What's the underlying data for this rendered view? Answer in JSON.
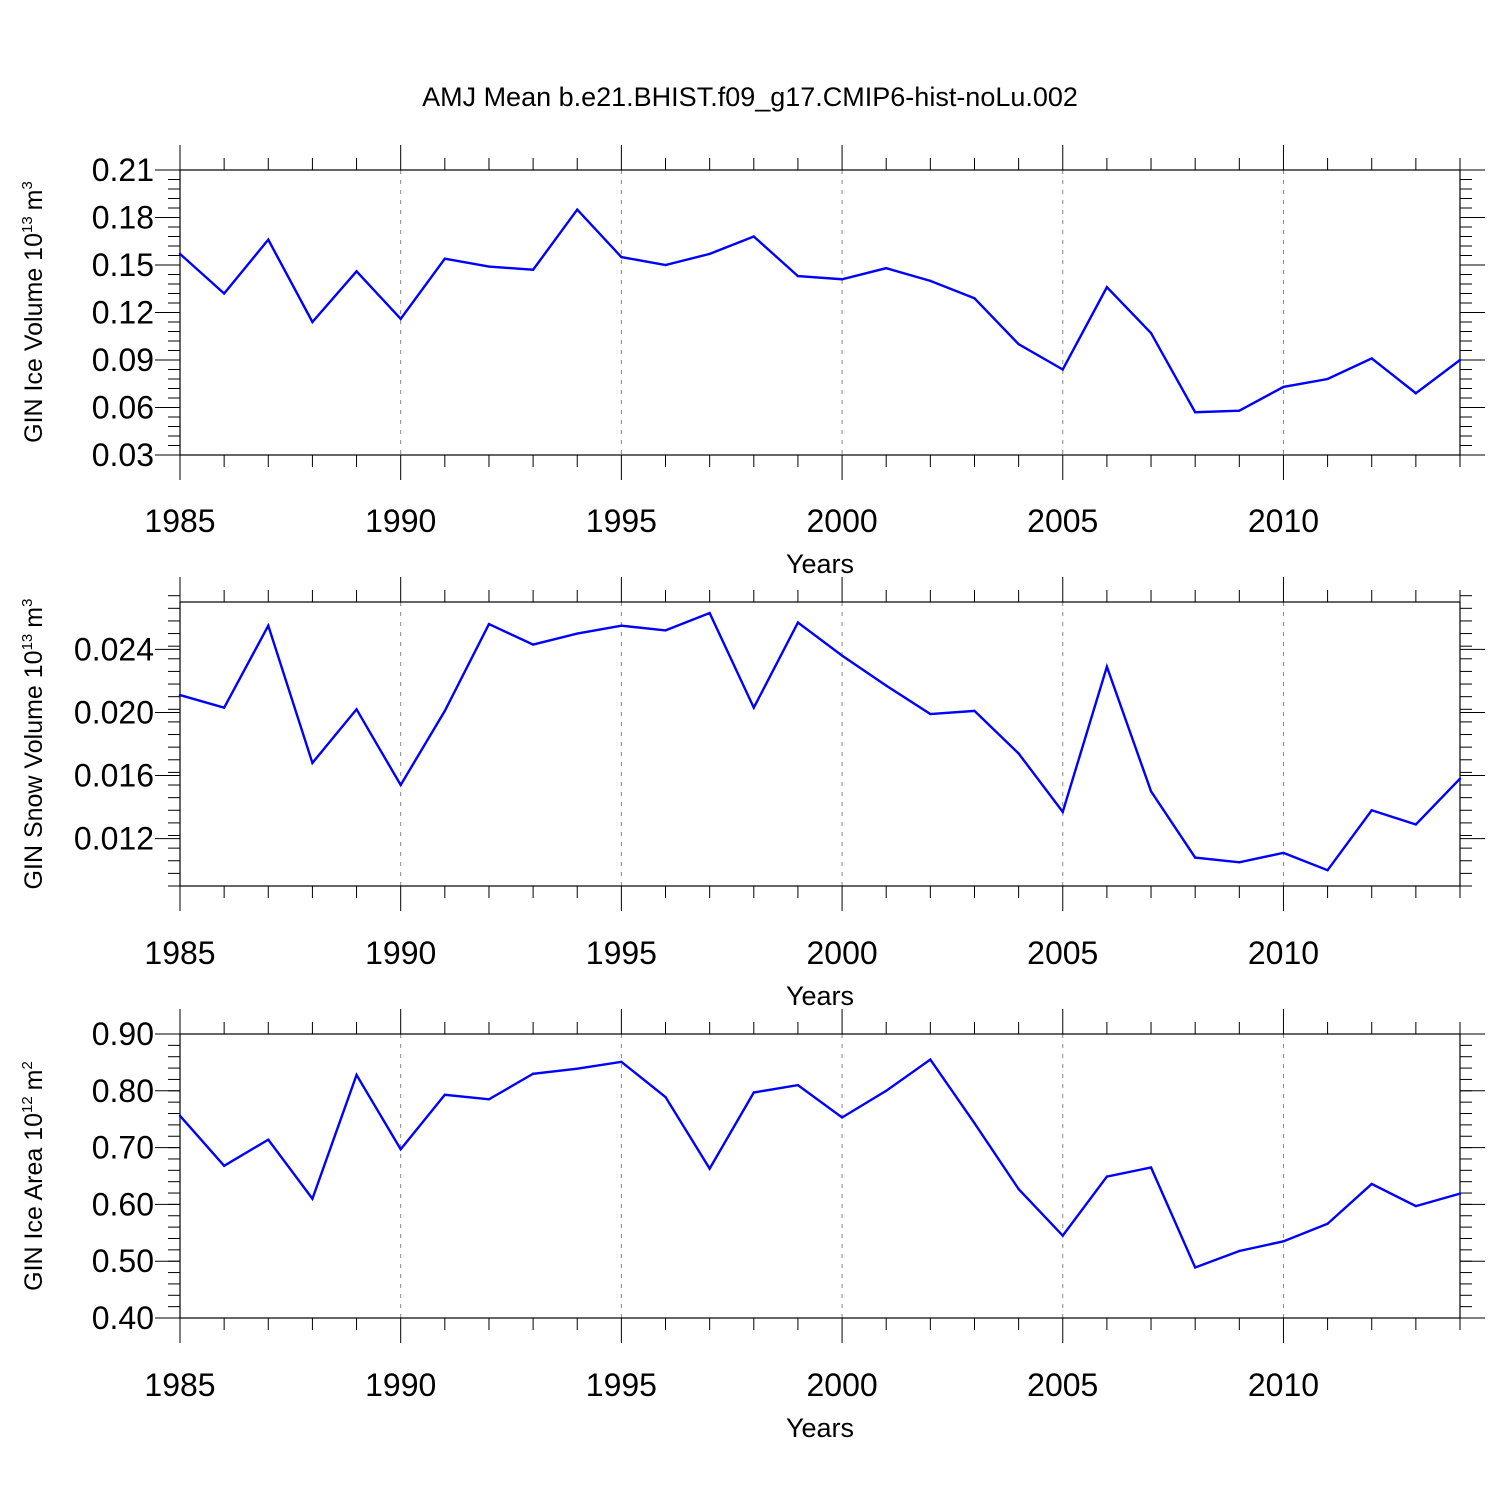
{
  "title": "AMJ Mean b.e21.BHIST.f09_g17.CMIP6-hist-noLu.002",
  "colors": {
    "series": "#0000ff",
    "axis": "#000000",
    "grid": "#888888"
  },
  "chart_data": [
    {
      "type": "line",
      "ylabel": {
        "text": "GIN Ice Volume 10",
        "exp": "13",
        "unit": "m",
        "unit_exp": "3"
      },
      "xlabel": "Years",
      "xlim": [
        1985,
        2014
      ],
      "ylim": [
        0.03,
        0.21
      ],
      "xticks": [
        1985,
        1990,
        1995,
        2000,
        2005,
        2010
      ],
      "yticks": [
        0.03,
        0.06,
        0.09,
        0.12,
        0.15,
        0.18,
        0.21
      ],
      "ytick_labels": [
        "0.03",
        "0.06",
        "0.09",
        "0.12",
        "0.15",
        "0.18",
        "0.21"
      ],
      "ytick_minor_step": 0.006,
      "grid": "vertical dashed at major x ticks",
      "x": [
        1985,
        1986,
        1987,
        1988,
        1989,
        1990,
        1991,
        1992,
        1993,
        1994,
        1995,
        1996,
        1997,
        1998,
        1999,
        2000,
        2001,
        2002,
        2003,
        2004,
        2005,
        2006,
        2007,
        2008,
        2009,
        2010,
        2011,
        2012,
        2013,
        2014
      ],
      "values": [
        0.157,
        0.132,
        0.166,
        0.114,
        0.146,
        0.116,
        0.154,
        0.149,
        0.147,
        0.185,
        0.155,
        0.15,
        0.157,
        0.168,
        0.143,
        0.141,
        0.148,
        0.14,
        0.129,
        0.1,
        0.084,
        0.136,
        0.107,
        0.057,
        0.058,
        0.073,
        0.078,
        0.091,
        0.069,
        0.09
      ]
    },
    {
      "type": "line",
      "ylabel": {
        "text": "GIN Snow Volume 10",
        "exp": "13",
        "unit": "m",
        "unit_exp": "3"
      },
      "xlabel": "Years",
      "xlim": [
        1985,
        2014
      ],
      "ylim": [
        0.009,
        0.027
      ],
      "xticks": [
        1985,
        1990,
        1995,
        2000,
        2005,
        2010
      ],
      "yticks": [
        0.012,
        0.016,
        0.02,
        0.024
      ],
      "ytick_labels": [
        "0.012",
        "0.016",
        "0.020",
        "0.024"
      ],
      "ytick_minor_step": 0.0008,
      "grid": "vertical dashed at major x ticks",
      "x": [
        1985,
        1986,
        1987,
        1988,
        1989,
        1990,
        1991,
        1992,
        1993,
        1994,
        1995,
        1996,
        1997,
        1998,
        1999,
        2000,
        2001,
        2002,
        2003,
        2004,
        2005,
        2006,
        2007,
        2008,
        2009,
        2010,
        2011,
        2012,
        2013,
        2014
      ],
      "values": [
        0.0211,
        0.0203,
        0.0255,
        0.0168,
        0.0202,
        0.0154,
        0.0201,
        0.0256,
        0.0243,
        0.025,
        0.0255,
        0.0252,
        0.0263,
        0.0203,
        0.0257,
        0.0236,
        0.0217,
        0.0199,
        0.0201,
        0.0174,
        0.0137,
        0.0229,
        0.015,
        0.0108,
        0.0105,
        0.0111,
        0.01,
        0.0138,
        0.0129,
        0.0158
      ]
    },
    {
      "type": "line",
      "ylabel": {
        "text": "GIN Ice Area 10",
        "exp": "12",
        "unit": "m",
        "unit_exp": "2"
      },
      "xlabel": "Years",
      "xlim": [
        1985,
        2014
      ],
      "ylim": [
        0.4,
        0.9
      ],
      "xticks": [
        1985,
        1990,
        1995,
        2000,
        2005,
        2010
      ],
      "yticks": [
        0.4,
        0.5,
        0.6,
        0.7,
        0.8,
        0.9
      ],
      "ytick_labels": [
        "0.40",
        "0.50",
        "0.60",
        "0.70",
        "0.80",
        "0.90"
      ],
      "ytick_minor_step": 0.02,
      "grid": "vertical dashed at major x ticks",
      "x": [
        1985,
        1986,
        1987,
        1988,
        1989,
        1990,
        1991,
        1992,
        1993,
        1994,
        1995,
        1996,
        1997,
        1998,
        1999,
        2000,
        2001,
        2002,
        2003,
        2004,
        2005,
        2006,
        2007,
        2008,
        2009,
        2010,
        2011,
        2012,
        2013,
        2014
      ],
      "values": [
        0.756,
        0.668,
        0.714,
        0.61,
        0.828,
        0.697,
        0.793,
        0.785,
        0.83,
        0.839,
        0.851,
        0.789,
        0.663,
        0.797,
        0.81,
        0.753,
        0.8,
        0.855,
        0.743,
        0.627,
        0.545,
        0.649,
        0.665,
        0.489,
        0.518,
        0.535,
        0.566,
        0.636,
        0.597,
        0.619
      ]
    }
  ]
}
